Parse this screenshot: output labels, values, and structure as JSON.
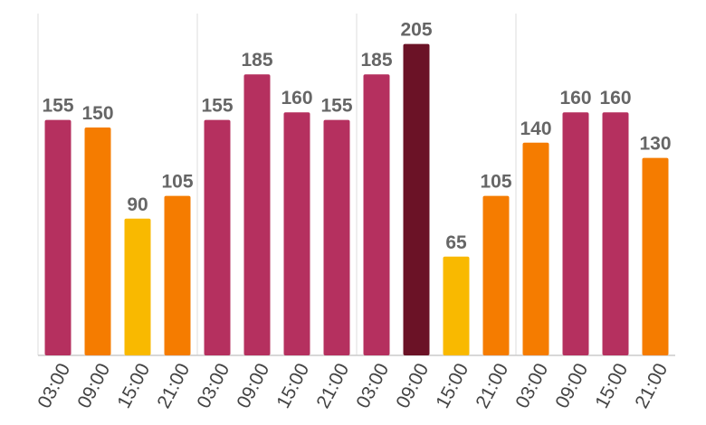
{
  "chart_data": {
    "type": "bar",
    "categories": [
      "03:00",
      "09:00",
      "15:00",
      "21:00",
      "03:00",
      "09:00",
      "15:00",
      "21:00",
      "03:00",
      "09:00",
      "15:00",
      "21:00",
      "03:00",
      "09:00",
      "15:00",
      "21:00"
    ],
    "values": [
      155,
      150,
      90,
      105,
      155,
      185,
      160,
      155,
      185,
      205,
      65,
      105,
      140,
      160,
      160,
      130
    ],
    "colors": [
      "#b5305f",
      "#f57c00",
      "#f9b900",
      "#f57c00",
      "#b5305f",
      "#b5305f",
      "#b5305f",
      "#b5305f",
      "#b5305f",
      "#6b1226",
      "#f9b900",
      "#f57c00",
      "#f57c00",
      "#b5305f",
      "#b5305f",
      "#f57c00"
    ],
    "ylim": [
      0,
      225
    ]
  }
}
